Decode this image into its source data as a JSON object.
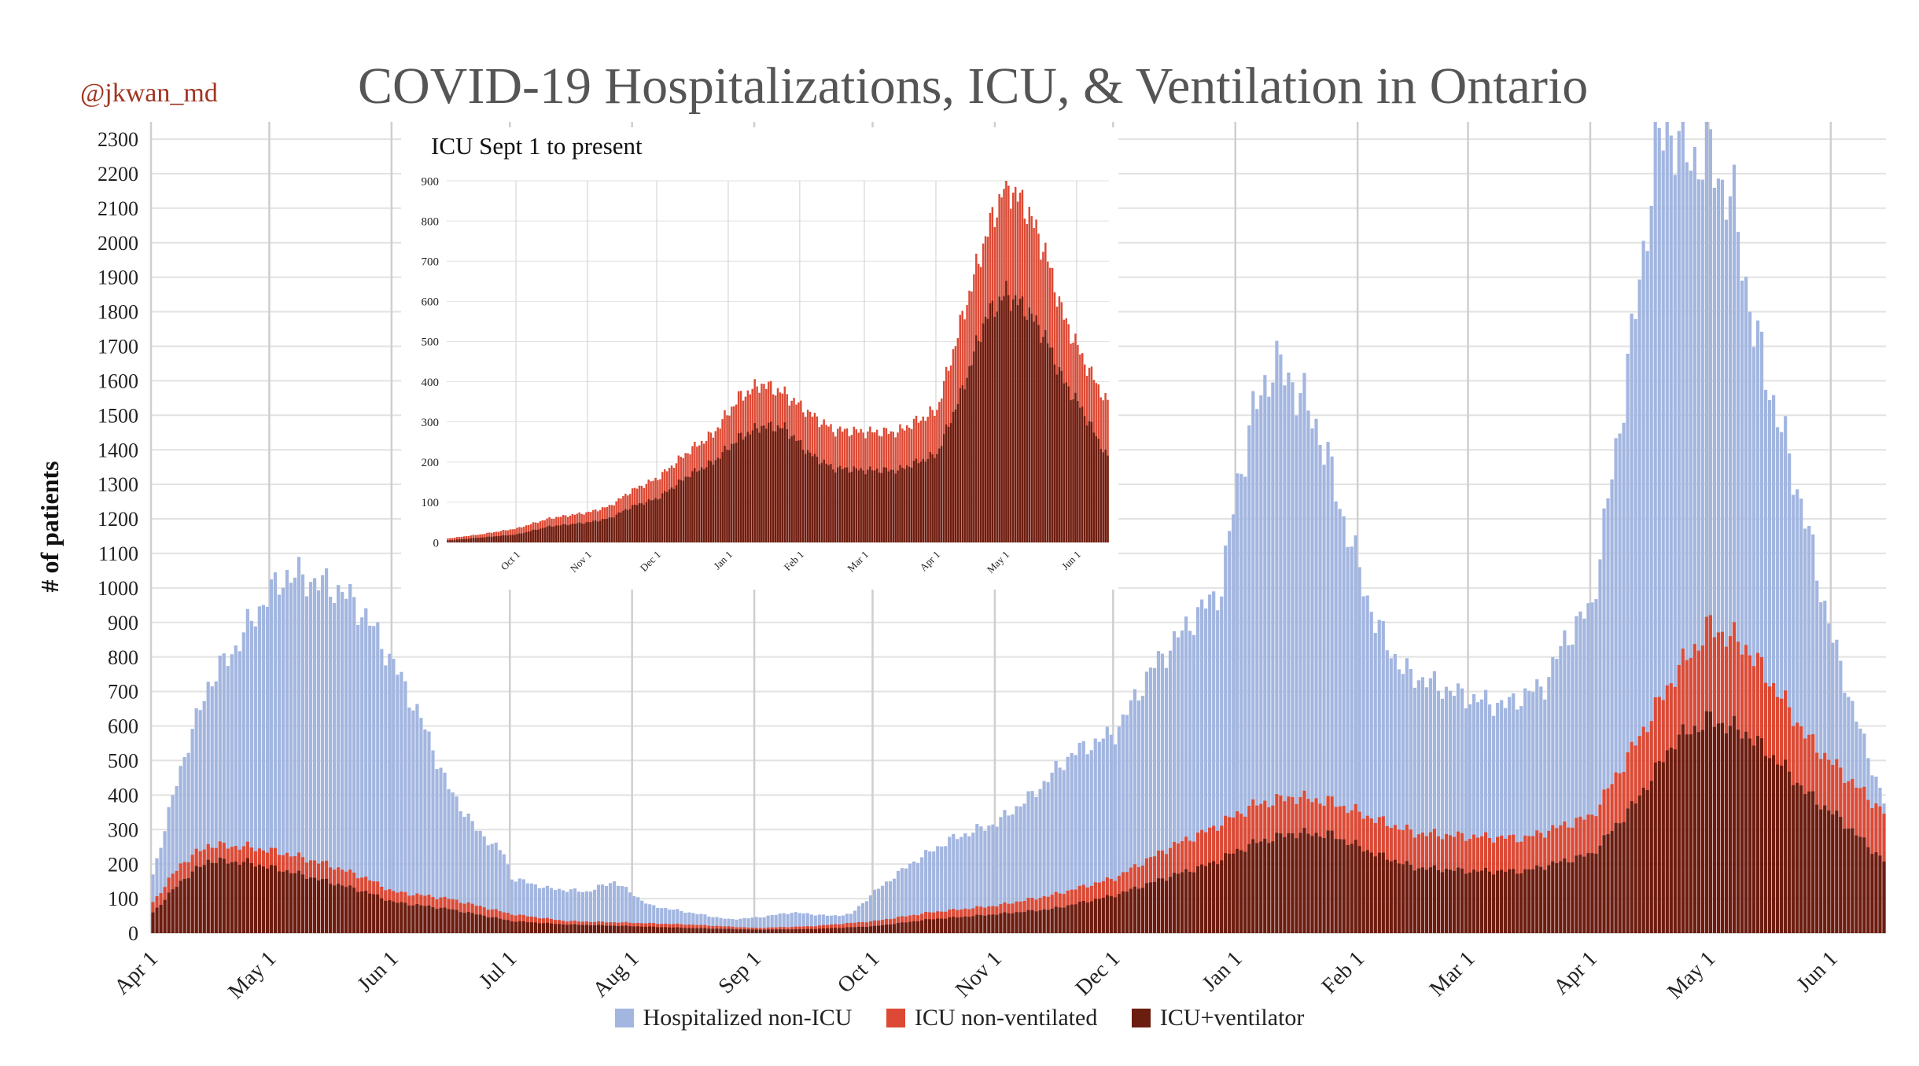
{
  "handle": "@jkwan_md",
  "title": "COVID-19 Hospitalizations, ICU, & Ventilation in Ontario",
  "colors": {
    "non_icu": "#a3b6e0",
    "icu_nonvent": "#dc4a35",
    "icu_vent": "#6b1d10",
    "grid": "#e2e2e2",
    "vgrid": "#cfcfcf"
  },
  "legend": [
    {
      "label": "Hospitalized non-ICU",
      "color": "#a3b6e0"
    },
    {
      "label": "ICU non-ventilated",
      "color": "#dc4a35"
    },
    {
      "label": "ICU+ventilator",
      "color": "#6b1d10"
    }
  ],
  "chart_data": [
    {
      "type": "bar",
      "stacked": true,
      "title": "COVID-19 Hospitalizations, ICU, & Ventilation in Ontario",
      "ylabel": "# of patients",
      "ylim": [
        0,
        2350
      ],
      "yticks": [
        0,
        100,
        200,
        300,
        400,
        500,
        600,
        700,
        800,
        900,
        1000,
        1100,
        1200,
        1300,
        1400,
        1500,
        1600,
        1700,
        1800,
        1900,
        2000,
        2100,
        2200,
        2300
      ],
      "xticks": [
        "Apr 1",
        "May 1",
        "Jun 1",
        "Jul 1",
        "Aug 1",
        "Sep 1",
        "Oct 1",
        "Nov 1",
        "Dec 1",
        "Jan 1",
        "Feb 1",
        "Mar 1",
        "Apr 1",
        "May 1",
        "Jun 1"
      ],
      "x_range": [
        "2020-04-01",
        "2021-06-14"
      ],
      "legend_position": "bottom",
      "grid": true,
      "series": [
        {
          "name": "Hospitalized non-ICU",
          "color": "#a3b6e0",
          "points": [
            [
              "2020-04-01",
              170
            ],
            [
              "2020-04-08",
              480
            ],
            [
              "2020-04-15",
              720
            ],
            [
              "2020-04-22",
              830
            ],
            [
              "2020-04-29",
              960
            ],
            [
              "2020-05-05",
              1040
            ],
            [
              "2020-05-12",
              1020
            ],
            [
              "2020-05-19",
              990
            ],
            [
              "2020-05-25",
              920
            ],
            [
              "2020-06-01",
              780
            ],
            [
              "2020-06-08",
              620
            ],
            [
              "2020-06-15",
              420
            ],
            [
              "2020-06-22",
              300
            ],
            [
              "2020-06-29",
              230
            ],
            [
              "2020-07-01",
              160
            ],
            [
              "2020-07-10",
              130
            ],
            [
              "2020-07-20",
              120
            ],
            [
              "2020-07-27",
              150
            ],
            [
              "2020-08-05",
              80
            ],
            [
              "2020-08-15",
              60
            ],
            [
              "2020-08-25",
              40
            ],
            [
              "2020-09-01",
              45
            ],
            [
              "2020-09-10",
              60
            ],
            [
              "2020-09-20",
              50
            ],
            [
              "2020-09-25",
              55
            ],
            [
              "2020-10-01",
              120
            ],
            [
              "2020-10-10",
              200
            ],
            [
              "2020-10-20",
              270
            ],
            [
              "2020-11-01",
              320
            ],
            [
              "2020-11-10",
              400
            ],
            [
              "2020-11-20",
              520
            ],
            [
              "2020-12-01",
              580
            ],
            [
              "2020-12-10",
              760
            ],
            [
              "2020-12-20",
              900
            ],
            [
              "2020-12-28",
              1000
            ],
            [
              "2021-01-01",
              1300
            ],
            [
              "2021-01-05",
              1500
            ],
            [
              "2021-01-10",
              1650
            ],
            [
              "2021-01-15",
              1600
            ],
            [
              "2021-01-22",
              1450
            ],
            [
              "2021-01-28",
              1200
            ],
            [
              "2021-02-05",
              900
            ],
            [
              "2021-02-12",
              760
            ],
            [
              "2021-02-20",
              720
            ],
            [
              "2021-03-01",
              680
            ],
            [
              "2021-03-10",
              660
            ],
            [
              "2021-03-20",
              720
            ],
            [
              "2021-03-25",
              850
            ],
            [
              "2021-04-01",
              950
            ],
            [
              "2021-04-07",
              1400
            ],
            [
              "2021-04-12",
              1800
            ],
            [
              "2021-04-17",
              2250
            ],
            [
              "2021-04-20",
              2350
            ],
            [
              "2021-04-25",
              2250
            ],
            [
              "2021-05-01",
              2250
            ],
            [
              "2021-05-07",
              2100
            ],
            [
              "2021-05-12",
              1750
            ],
            [
              "2021-05-18",
              1500
            ],
            [
              "2021-05-24",
              1250
            ],
            [
              "2021-06-01",
              850
            ],
            [
              "2021-06-07",
              620
            ],
            [
              "2021-06-14",
              380
            ]
          ]
        },
        {
          "name": "ICU non-ventilated",
          "color": "#dc4a35",
          "points": [
            [
              "2020-04-01",
              90
            ],
            [
              "2020-04-08",
              200
            ],
            [
              "2020-04-15",
              255
            ],
            [
              "2020-04-25",
              250
            ],
            [
              "2020-05-05",
              230
            ],
            [
              "2020-05-15",
              200
            ],
            [
              "2020-05-25",
              160
            ],
            [
              "2020-06-01",
              120
            ],
            [
              "2020-06-15",
              100
            ],
            [
              "2020-07-01",
              55
            ],
            [
              "2020-07-15",
              35
            ],
            [
              "2020-08-01",
              30
            ],
            [
              "2020-08-15",
              25
            ],
            [
              "2020-09-01",
              15
            ],
            [
              "2020-09-15",
              20
            ],
            [
              "2020-10-01",
              35
            ],
            [
              "2020-10-15",
              60
            ],
            [
              "2020-11-01",
              80
            ],
            [
              "2020-11-15",
              110
            ],
            [
              "2020-12-01",
              160
            ],
            [
              "2020-12-15",
              250
            ],
            [
              "2020-12-25",
              300
            ],
            [
              "2021-01-05",
              370
            ],
            [
              "2021-01-15",
              395
            ],
            [
              "2021-01-25",
              380
            ],
            [
              "2021-02-05",
              330
            ],
            [
              "2021-02-15",
              290
            ],
            [
              "2021-03-01",
              280
            ],
            [
              "2021-03-15",
              275
            ],
            [
              "2021-04-01",
              340
            ],
            [
              "2021-04-12",
              550
            ],
            [
              "2021-04-22",
              750
            ],
            [
              "2021-05-01",
              890
            ],
            [
              "2021-05-10",
              830
            ],
            [
              "2021-05-18",
              700
            ],
            [
              "2021-05-26",
              560
            ],
            [
              "2021-06-03",
              470
            ],
            [
              "2021-06-14",
              350
            ]
          ]
        },
        {
          "name": "ICU+ventilator",
          "color": "#6b1d10",
          "points": [
            [
              "2020-04-01",
              60
            ],
            [
              "2020-04-08",
              150
            ],
            [
              "2020-04-15",
              210
            ],
            [
              "2020-04-25",
              205
            ],
            [
              "2020-05-05",
              180
            ],
            [
              "2020-05-15",
              150
            ],
            [
              "2020-05-25",
              120
            ],
            [
              "2020-06-01",
              90
            ],
            [
              "2020-06-15",
              70
            ],
            [
              "2020-07-01",
              35
            ],
            [
              "2020-07-15",
              25
            ],
            [
              "2020-08-01",
              20
            ],
            [
              "2020-08-15",
              15
            ],
            [
              "2020-09-01",
              10
            ],
            [
              "2020-09-15",
              12
            ],
            [
              "2020-10-01",
              20
            ],
            [
              "2020-10-15",
              40
            ],
            [
              "2020-11-01",
              55
            ],
            [
              "2020-11-15",
              70
            ],
            [
              "2020-12-01",
              110
            ],
            [
              "2020-12-15",
              165
            ],
            [
              "2020-12-25",
              200
            ],
            [
              "2021-01-05",
              260
            ],
            [
              "2021-01-15",
              290
            ],
            [
              "2021-01-25",
              285
            ],
            [
              "2021-02-05",
              230
            ],
            [
              "2021-02-15",
              190
            ],
            [
              "2021-03-01",
              180
            ],
            [
              "2021-03-15",
              180
            ],
            [
              "2021-04-01",
              230
            ],
            [
              "2021-04-12",
              380
            ],
            [
              "2021-04-22",
              560
            ],
            [
              "2021-05-01",
              620
            ],
            [
              "2021-05-10",
              580
            ],
            [
              "2021-05-18",
              500
            ],
            [
              "2021-05-26",
              400
            ],
            [
              "2021-06-03",
              330
            ],
            [
              "2021-06-14",
              210
            ]
          ]
        }
      ]
    },
    {
      "type": "bar",
      "stacked": true,
      "title": "ICU Sept 1 to present",
      "ylim": [
        0,
        900
      ],
      "yticks": [
        0,
        100,
        200,
        300,
        400,
        500,
        600,
        700,
        800,
        900
      ],
      "xticks": [
        "Oct 1",
        "Nov 1",
        "Dec 1",
        "Jan 1",
        "Feb 1",
        "Mar 1",
        "Apr 1",
        "May 1",
        "Jun 1"
      ],
      "x_range": [
        "2020-09-01",
        "2021-06-14"
      ],
      "grid": true,
      "series": [
        {
          "name": "ICU non-ventilated",
          "color": "#dc4a35",
          "points": [
            [
              "2020-09-01",
              10
            ],
            [
              "2020-09-15",
              20
            ],
            [
              "2020-10-01",
              35
            ],
            [
              "2020-10-15",
              60
            ],
            [
              "2020-11-01",
              75
            ],
            [
              "2020-11-10",
              90
            ],
            [
              "2020-11-20",
              130
            ],
            [
              "2020-12-01",
              160
            ],
            [
              "2020-12-15",
              230
            ],
            [
              "2020-12-25",
              270
            ],
            [
              "2021-01-05",
              360
            ],
            [
              "2021-01-15",
              395
            ],
            [
              "2021-01-25",
              370
            ],
            [
              "2021-02-05",
              320
            ],
            [
              "2021-02-15",
              280
            ],
            [
              "2021-03-01",
              275
            ],
            [
              "2021-03-15",
              275
            ],
            [
              "2021-04-01",
              330
            ],
            [
              "2021-04-12",
              560
            ],
            [
              "2021-04-22",
              760
            ],
            [
              "2021-05-01",
              895
            ],
            [
              "2021-05-10",
              830
            ],
            [
              "2021-05-18",
              720
            ],
            [
              "2021-05-26",
              560
            ],
            [
              "2021-06-03",
              460
            ],
            [
              "2021-06-14",
              345
            ]
          ]
        },
        {
          "name": "ICU+ventilator",
          "color": "#6b1d10",
          "points": [
            [
              "2020-09-01",
              5
            ],
            [
              "2020-09-15",
              12
            ],
            [
              "2020-10-01",
              20
            ],
            [
              "2020-10-15",
              40
            ],
            [
              "2020-11-01",
              50
            ],
            [
              "2020-11-10",
              60
            ],
            [
              "2020-11-20",
              90
            ],
            [
              "2020-12-01",
              110
            ],
            [
              "2020-12-15",
              170
            ],
            [
              "2020-12-25",
              200
            ],
            [
              "2021-01-05",
              260
            ],
            [
              "2021-01-15",
              290
            ],
            [
              "2021-01-25",
              285
            ],
            [
              "2021-02-05",
              220
            ],
            [
              "2021-02-15",
              185
            ],
            [
              "2021-03-01",
              180
            ],
            [
              "2021-03-15",
              180
            ],
            [
              "2021-04-01",
              220
            ],
            [
              "2021-04-12",
              380
            ],
            [
              "2021-04-22",
              560
            ],
            [
              "2021-05-01",
              620
            ],
            [
              "2021-05-10",
              580
            ],
            [
              "2021-05-18",
              510
            ],
            [
              "2021-05-26",
              400
            ],
            [
              "2021-06-03",
              330
            ],
            [
              "2021-06-14",
              210
            ]
          ]
        }
      ]
    }
  ]
}
